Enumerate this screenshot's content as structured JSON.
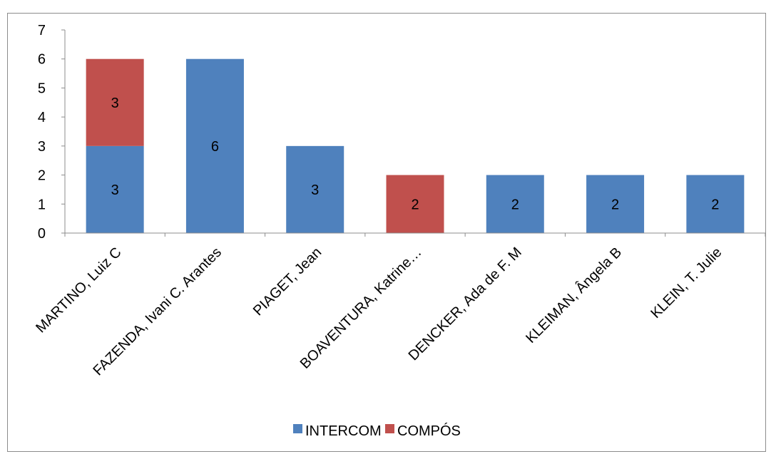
{
  "chart_data": {
    "type": "bar",
    "stacked": true,
    "title": "",
    "xlabel": "",
    "ylabel": "",
    "ylim": [
      0,
      7
    ],
    "yticks": [
      0,
      1,
      2,
      3,
      4,
      5,
      6,
      7
    ],
    "grid": false,
    "legend_position": "bottom",
    "categories": [
      "MARTINO, Luiz C",
      "FAZENDA, Ivani C. Arantes",
      "PIAGET, Jean",
      "BOAVENTURA, Katrine…",
      "DENCKER, Ada de F. M",
      "KLEIMAN, Ângela B",
      "KLEIN, T. Julie"
    ],
    "series": [
      {
        "name": "INTERCOM",
        "color": "#4f81bd",
        "values": [
          3,
          6,
          3,
          0,
          2,
          2,
          2
        ]
      },
      {
        "name": "COMPÓS",
        "color": "#c0504d",
        "values": [
          3,
          0,
          0,
          2,
          0,
          0,
          0
        ]
      }
    ]
  }
}
